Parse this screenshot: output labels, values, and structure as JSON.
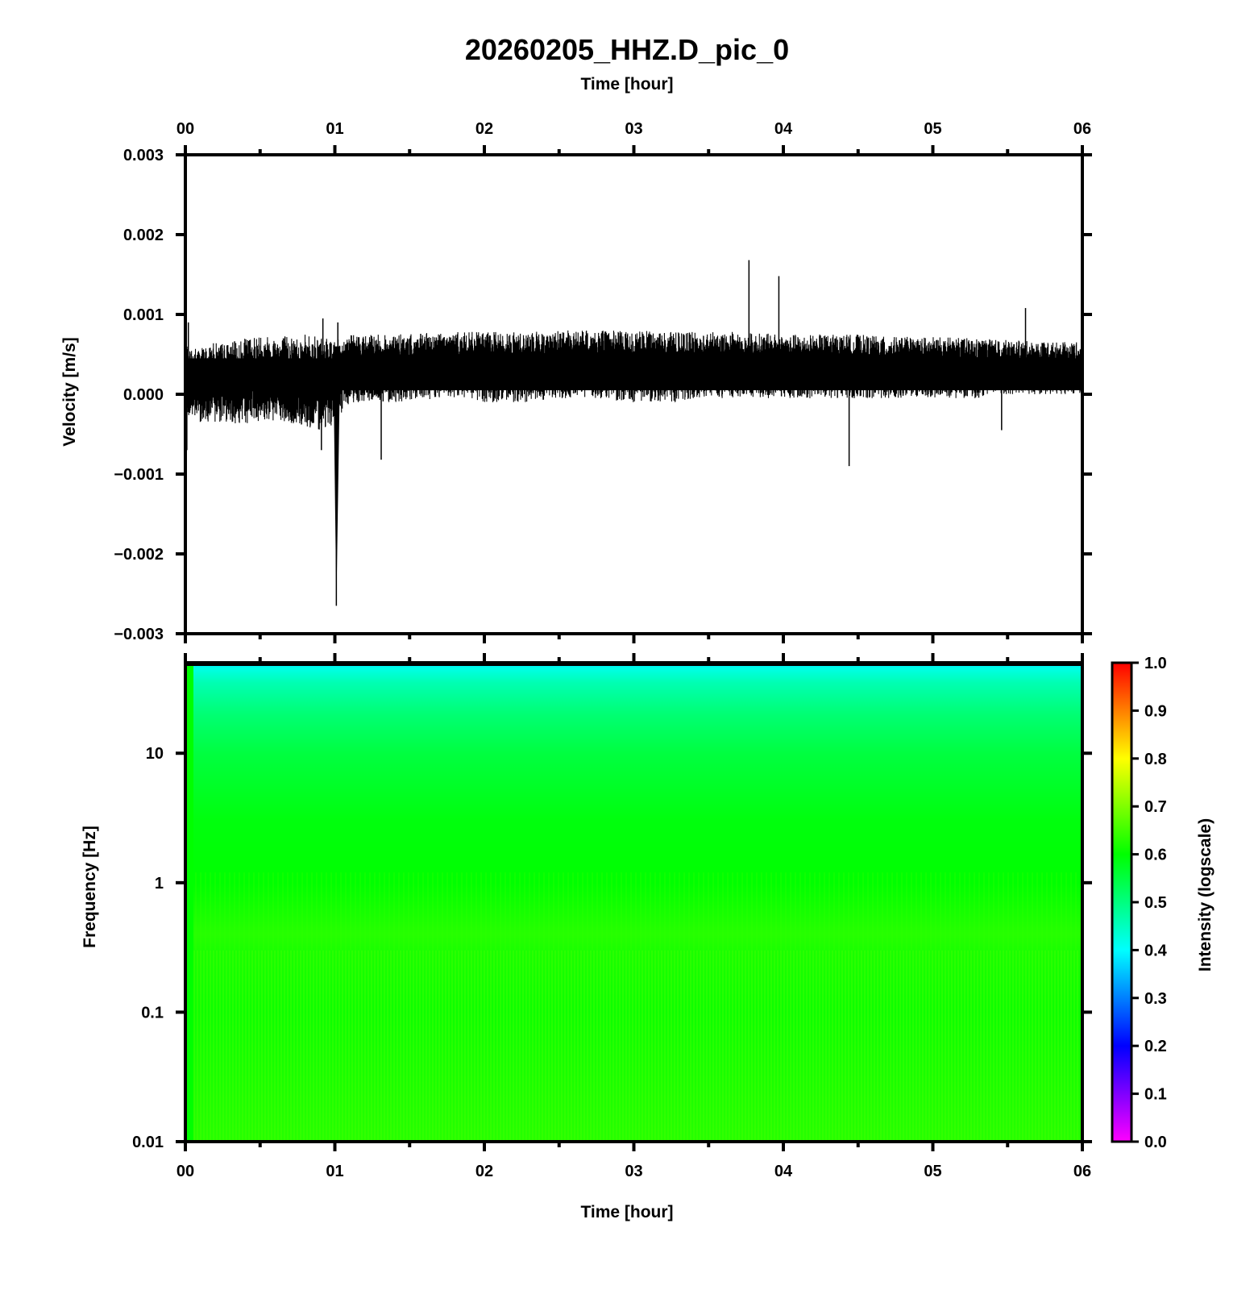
{
  "title": "20260205_HHZ.D_pic_0",
  "chart_data": [
    {
      "type": "line",
      "panel": "waveform",
      "xlabel_top": "Time [hour]",
      "ylabel": "Velocity [m/s]",
      "x_ticks": [
        "00",
        "01",
        "02",
        "03",
        "04",
        "05",
        "06"
      ],
      "xlim": [
        0,
        6
      ],
      "y_ticks": [
        "0.003",
        "0.002",
        "0.001",
        "0.000",
        "−0.001",
        "−0.002",
        "−0.003"
      ],
      "ylim": [
        -0.003,
        0.003
      ],
      "series": [
        {
          "color": "#000000",
          "envelope": {
            "hours": [
              0.0,
              0.1,
              0.2,
              0.3,
              0.4,
              0.45,
              0.5,
              0.6,
              0.7,
              0.8,
              0.9,
              0.95,
              1.0,
              1.03,
              1.06,
              1.1,
              1.2,
              1.3,
              1.5,
              1.7,
              2.0,
              2.3,
              2.5,
              2.7,
              3.0,
              3.3,
              3.5,
              3.7,
              4.0,
              4.3,
              4.5,
              4.7,
              5.0,
              5.3,
              5.5,
              5.7,
              6.0
            ],
            "upper": [
              0.0006,
              0.0006,
              0.00065,
              0.00065,
              0.0007,
              0.00075,
              0.00075,
              0.00075,
              0.00075,
              0.00075,
              0.00075,
              0.0007,
              0.00065,
              0.0007,
              0.00075,
              0.00075,
              0.00075,
              0.00075,
              0.00075,
              0.00078,
              0.00078,
              0.00078,
              0.0008,
              0.0008,
              0.0008,
              0.00078,
              0.00078,
              0.00078,
              0.00075,
              0.00075,
              0.00075,
              0.00072,
              0.00072,
              0.0007,
              0.00068,
              0.00066,
              0.00065
            ],
            "lower": [
              -0.0003,
              -0.00035,
              -0.00035,
              -0.00035,
              -0.0004,
              -0.0003,
              -0.00035,
              -0.00035,
              -0.0004,
              -0.0004,
              -0.00045,
              -0.0004,
              -0.0004,
              -0.0003,
              -0.0002,
              -0.0001,
              -0.0001,
              -0.0001,
              -0.0001,
              -5e-05,
              -0.0001,
              -0.0001,
              -5e-05,
              -5e-05,
              -0.0001,
              -0.0001,
              -5e-05,
              -5e-05,
              -5e-05,
              -5e-05,
              -5e-05,
              -5e-05,
              -5e-05,
              -5e-05,
              0.0,
              0.0,
              0.0
            ]
          },
          "events": [
            {
              "x": 0.01,
              "y": -0.0007
            },
            {
              "x": 0.02,
              "y": 0.0009
            },
            {
              "x": 0.91,
              "y": -0.0007
            },
            {
              "x": 0.92,
              "y": 0.00095
            },
            {
              "x": 1.01,
              "y": -0.00265
            },
            {
              "x": 1.02,
              "y": 0.0009
            },
            {
              "x": 1.31,
              "y": -0.00082
            },
            {
              "x": 3.77,
              "y": 0.00168
            },
            {
              "x": 3.97,
              "y": 0.00148
            },
            {
              "x": 4.44,
              "y": -0.0009
            },
            {
              "x": 5.46,
              "y": -0.00045
            },
            {
              "x": 5.62,
              "y": 0.00108
            }
          ]
        }
      ]
    },
    {
      "type": "heatmap",
      "panel": "spectrogram",
      "xlabel": "Time [hour]",
      "ylabel": "Frequency [Hz]",
      "x_ticks": [
        "00",
        "01",
        "02",
        "03",
        "04",
        "05",
        "06"
      ],
      "xlim": [
        0,
        6
      ],
      "y_scale": "log",
      "y_ticks": [
        "10",
        "1",
        "0.1",
        "0.01"
      ],
      "ylim": [
        0.01,
        50
      ],
      "intensity_profile": {
        "frequency": [
          0.01,
          0.03,
          0.1,
          0.3,
          0.4,
          1,
          3,
          10,
          20,
          35,
          45,
          50
        ],
        "intensity": [
          0.63,
          0.62,
          0.61,
          0.62,
          0.63,
          0.6,
          0.59,
          0.55,
          0.51,
          0.46,
          0.42,
          0.38
        ]
      },
      "colorbar": {
        "label": "Intensity (logscale)",
        "ticks": [
          "1.0",
          "0.9",
          "0.8",
          "0.7",
          "0.6",
          "0.5",
          "0.4",
          "0.3",
          "0.2",
          "0.1",
          "0.0"
        ],
        "range": [
          0,
          1
        ],
        "colors": [
          "#ff00ff",
          "#0000ff",
          "#00ffff",
          "#00ff00",
          "#ffff00",
          "#ff0000"
        ]
      }
    }
  ]
}
